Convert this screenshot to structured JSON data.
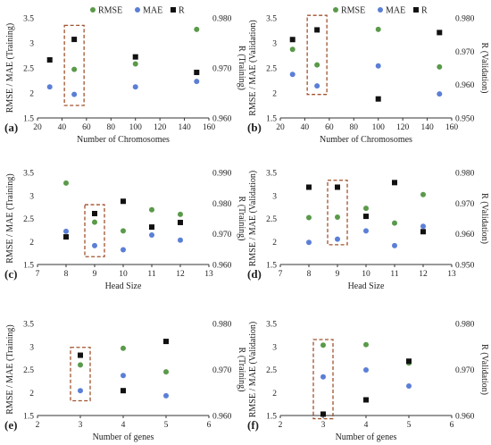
{
  "legend": {
    "rmse": "RMSE",
    "mae": "MAE",
    "r": "R"
  },
  "colors": {
    "rmse": "#5a9a4a",
    "mae": "#5b7fd6",
    "r": "#111111",
    "highlight": "#a0522d",
    "axis": "#333333"
  },
  "chart_data": [
    {
      "type": "scatter",
      "panel_label": "(a)",
      "xlabel": "Number of Chromosomes",
      "ylabel": "RMSE / MAE (Training)",
      "y2label": "R (Training)",
      "xlim": [
        20,
        160
      ],
      "xticks": [
        20,
        40,
        60,
        80,
        100,
        120,
        140,
        160
      ],
      "ylim": [
        1.5,
        3.5
      ],
      "yticks": [
        1.5,
        2,
        2.5,
        3,
        3.5
      ],
      "y2lim": [
        0.96,
        0.98
      ],
      "y2ticks": [
        0.96,
        0.97,
        0.98
      ],
      "x": [
        30,
        50,
        100,
        150
      ],
      "series": [
        {
          "name": "RMSE",
          "axis": "left",
          "values": [
            null,
            2.47,
            2.58,
            3.27
          ]
        },
        {
          "name": "MAE",
          "axis": "left",
          "values": [
            2.12,
            1.97,
            2.12,
            2.23
          ]
        },
        {
          "name": "R",
          "axis": "right",
          "values": [
            0.9716,
            0.9757,
            0.9722,
            0.9691
          ]
        }
      ],
      "highlight_x": 50,
      "highlight_y": [
        1.75,
        3.35
      ]
    },
    {
      "type": "scatter",
      "panel_label": "(b)",
      "xlabel": "Number of Chromosomes",
      "ylabel": "RMSE / MAE (Validation)",
      "y2label": "R (Validation)",
      "xlim": [
        20,
        160
      ],
      "xticks": [
        20,
        40,
        60,
        80,
        100,
        120,
        140,
        160
      ],
      "ylim": [
        1.5,
        3.5
      ],
      "yticks": [
        1.5,
        2,
        2.5,
        3,
        3.5
      ],
      "y2lim": [
        0.95,
        0.98
      ],
      "y2ticks": [
        0.95,
        0.96,
        0.97,
        0.98
      ],
      "x": [
        30,
        50,
        100,
        150
      ],
      "series": [
        {
          "name": "RMSE",
          "axis": "left",
          "values": [
            2.87,
            2.56,
            3.27,
            2.52
          ]
        },
        {
          "name": "MAE",
          "axis": "left",
          "values": [
            2.37,
            2.14,
            2.54,
            1.98
          ]
        },
        {
          "name": "R",
          "axis": "right",
          "values": [
            0.9735,
            0.9764,
            0.9557,
            0.9756
          ]
        }
      ],
      "highlight_x": 50,
      "highlight_y": [
        1.97,
        3.55
      ]
    },
    {
      "type": "scatter",
      "panel_label": "(c)",
      "xlabel": "Head Size",
      "ylabel": "RMSE / MAE (Training)",
      "y2label": "R (Training)",
      "xlim": [
        7,
        13
      ],
      "xticks": [
        7,
        8,
        9,
        10,
        11,
        12,
        13
      ],
      "ylim": [
        1.5,
        3.5
      ],
      "yticks": [
        1.5,
        2,
        2.5,
        3,
        3.5
      ],
      "y2lim": [
        0.96,
        0.99
      ],
      "y2ticks": [
        0.96,
        0.97,
        0.98,
        0.99
      ],
      "x": [
        8,
        9,
        10,
        11,
        12
      ],
      "series": [
        {
          "name": "RMSE",
          "axis": "left",
          "values": [
            3.27,
            2.42,
            2.23,
            2.69,
            2.59
          ]
        },
        {
          "name": "MAE",
          "axis": "left",
          "values": [
            2.22,
            1.91,
            1.82,
            2.14,
            2.03
          ]
        },
        {
          "name": "R",
          "axis": "right",
          "values": [
            0.969,
            0.9766,
            0.9806,
            0.9722,
            0.9737
          ]
        }
      ],
      "highlight_x": 9,
      "highlight_y": [
        1.67,
        2.8
      ]
    },
    {
      "type": "scatter",
      "panel_label": "(d)",
      "xlabel": "Head Size",
      "ylabel": "RMSE / MAE (Validation)",
      "y2label": "R (Validation)",
      "xlim": [
        7,
        13
      ],
      "xticks": [
        7,
        8,
        9,
        10,
        11,
        12,
        13
      ],
      "ylim": [
        1.5,
        3.5
      ],
      "yticks": [
        1.5,
        2,
        2.5,
        3,
        3.5
      ],
      "y2lim": [
        0.95,
        0.98
      ],
      "y2ticks": [
        0.95,
        0.96,
        0.97,
        0.98
      ],
      "x": [
        8,
        9,
        10,
        11,
        12
      ],
      "series": [
        {
          "name": "RMSE",
          "axis": "left",
          "values": [
            2.52,
            2.53,
            2.72,
            2.4,
            3.02
          ]
        },
        {
          "name": "MAE",
          "axis": "left",
          "values": [
            1.98,
            2.05,
            2.23,
            1.91,
            2.33
          ]
        },
        {
          "name": "R",
          "axis": "right",
          "values": [
            0.9752,
            0.9752,
            0.9657,
            0.9767,
            0.9607
          ]
        }
      ],
      "highlight_x": 9,
      "highlight_y": [
        1.93,
        3.33
      ]
    },
    {
      "type": "scatter",
      "panel_label": "(e)",
      "xlabel": "Number of genes",
      "ylabel": "RMSE / MAE (Training)",
      "y2label": "R (Training)",
      "xlim": [
        2,
        6
      ],
      "xticks": [
        2,
        3,
        4,
        5,
        6
      ],
      "ylim": [
        1.5,
        3.5
      ],
      "yticks": [
        1.5,
        2,
        2.5,
        3,
        3.5
      ],
      "y2lim": [
        0.96,
        0.98
      ],
      "y2ticks": [
        0.96,
        0.97,
        0.98
      ],
      "x": [
        3,
        4,
        5
      ],
      "series": [
        {
          "name": "RMSE",
          "axis": "left",
          "values": [
            2.6,
            2.96,
            2.45
          ]
        },
        {
          "name": "MAE",
          "axis": "left",
          "values": [
            2.04,
            2.37,
            1.93
          ]
        },
        {
          "name": "R",
          "axis": "right",
          "values": [
            0.9731,
            0.9654,
            0.9761
          ]
        }
      ],
      "highlight_x": 3,
      "highlight_y": [
        1.82,
        2.98
      ]
    },
    {
      "type": "scatter",
      "panel_label": "(f)",
      "xlabel": "Number of genes",
      "ylabel": "RMSE / MAE (Validation)",
      "y2label": "R (Validation)",
      "xlim": [
        2,
        6
      ],
      "xticks": [
        2,
        3,
        4,
        5,
        6
      ],
      "ylim": [
        1.5,
        3.5
      ],
      "yticks": [
        1.5,
        2,
        2.5,
        3,
        3.5
      ],
      "y2lim": [
        0.96,
        0.98
      ],
      "y2ticks": [
        0.96,
        0.97,
        0.98
      ],
      "x": [
        3,
        4,
        5
      ],
      "series": [
        {
          "name": "RMSE",
          "axis": "left",
          "values": [
            3.03,
            3.04,
            2.64
          ]
        },
        {
          "name": "MAE",
          "axis": "left",
          "values": [
            2.34,
            2.49,
            2.14
          ]
        },
        {
          "name": "R",
          "axis": "right",
          "values": [
            0.9603,
            0.9634,
            0.9718
          ]
        }
      ],
      "highlight_x": 3,
      "highlight_y": [
        1.43,
        3.15
      ]
    }
  ]
}
